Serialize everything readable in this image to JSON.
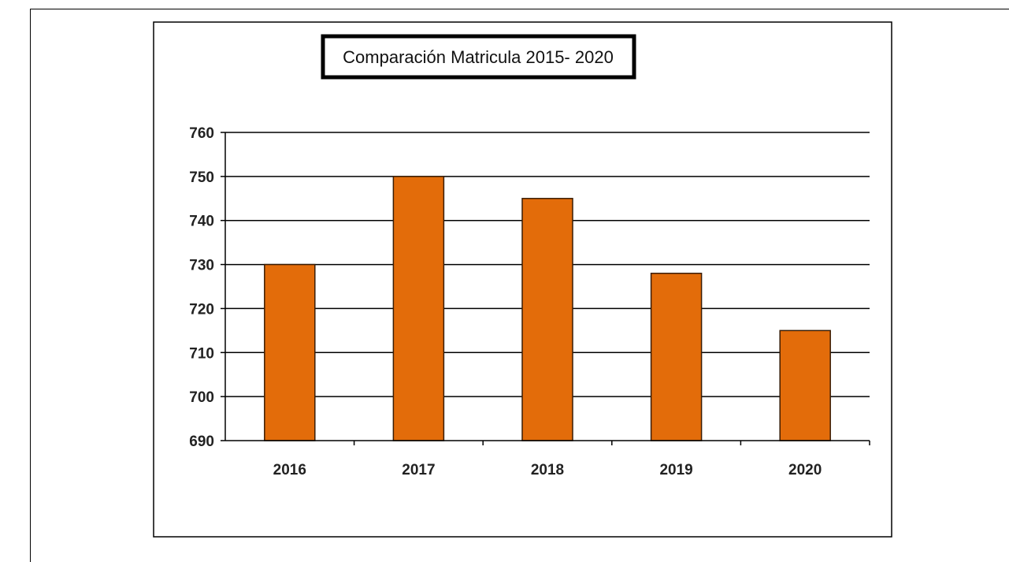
{
  "chart_data": {
    "type": "bar",
    "title": "Comparación Matricula 2015- 2020",
    "categories": [
      "2016",
      "2017",
      "2018",
      "2019",
      "2020"
    ],
    "values": [
      730,
      750,
      745,
      728,
      715
    ],
    "ylim": [
      690,
      760
    ],
    "yticks": [
      "690",
      "700",
      "710",
      "720",
      "730",
      "740",
      "750",
      "760"
    ],
    "xlabel": "",
    "ylabel": "",
    "grid": true,
    "colors": {
      "bar": "#E36C0A",
      "bar_stroke": "#3a1d05",
      "grid": "#000000"
    }
  }
}
